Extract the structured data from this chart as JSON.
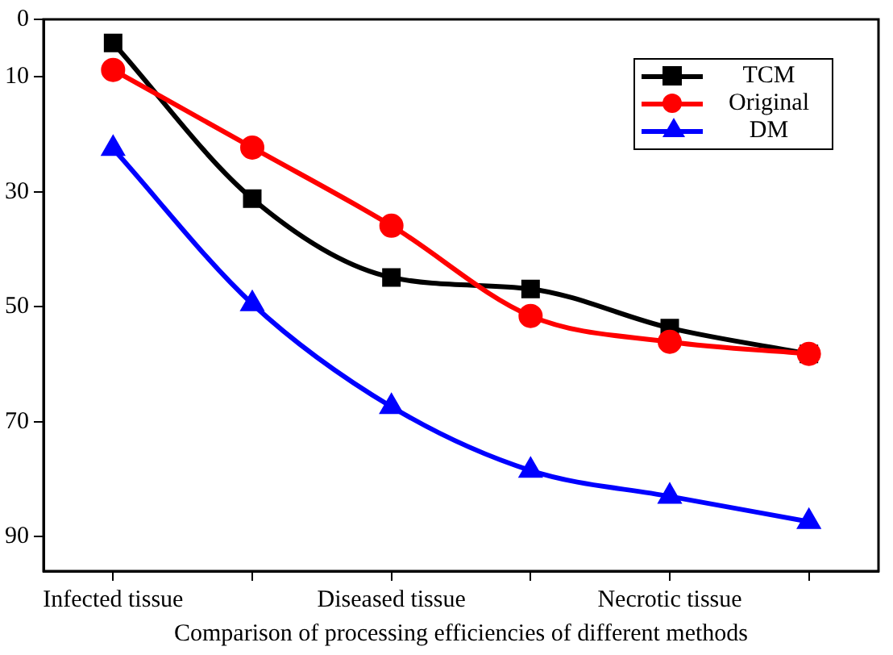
{
  "chart_data": {
    "type": "line",
    "xlabel": "Comparison of processing efficiencies of different methods",
    "categories": [
      "Infected tissue",
      null,
      "Diseased tissue",
      null,
      "Necrotic tissue",
      null
    ],
    "series": [
      {
        "name": "TCM",
        "color": "#000000",
        "marker": "square",
        "values": [
          4.1,
          31.2,
          44.9,
          46.9,
          53.7,
          58.2
        ]
      },
      {
        "name": "Original",
        "color": "#ff0000",
        "marker": "circle",
        "values": [
          8.8,
          22.3,
          35.9,
          51.6,
          56.1,
          58.2
        ]
      },
      {
        "name": "DM",
        "color": "#0000ff",
        "marker": "triangle",
        "values": [
          22.5,
          49.5,
          67.4,
          78.5,
          83,
          87.4
        ]
      }
    ],
    "ylim": [
      96,
      0
    ],
    "yticks": [
      0,
      10,
      30,
      50,
      70,
      90
    ],
    "grid": false,
    "legend": "top right",
    "line_style": "solid"
  }
}
